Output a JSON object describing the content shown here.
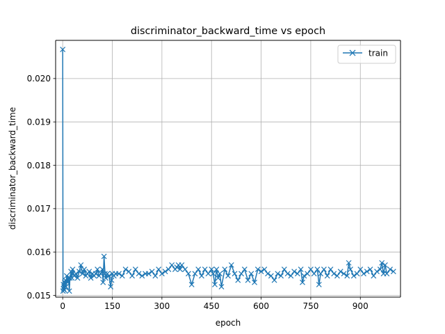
{
  "chart_data": {
    "type": "line",
    "title": "discriminator_backward_time vs epoch",
    "xlabel": "epoch",
    "ylabel": "discriminator_backward_time",
    "xlim": [
      -21.4,
      1021.4
    ],
    "ylim": [
      0.01496,
      0.02088
    ],
    "xticks": [
      0,
      150,
      300,
      450,
      600,
      750,
      900
    ],
    "yticks": [
      0.015,
      0.016,
      0.017,
      0.018,
      0.019,
      0.02
    ],
    "ytick_labels": [
      "0.015",
      "0.016",
      "0.017",
      "0.018",
      "0.019",
      "0.020"
    ],
    "grid": true,
    "legend": "upper right",
    "marker": "x",
    "series": [
      {
        "name": "train",
        "color": "#1f77b4",
        "x": [
          0,
          1,
          2,
          3,
          4,
          5,
          6,
          8,
          10,
          12,
          15,
          18,
          20,
          22,
          25,
          28,
          30,
          35,
          40,
          45,
          50,
          55,
          60,
          65,
          70,
          75,
          80,
          85,
          90,
          95,
          100,
          105,
          110,
          115,
          120,
          122,
          125,
          128,
          130,
          135,
          140,
          145,
          148,
          150,
          155,
          160,
          170,
          180,
          190,
          200,
          210,
          220,
          230,
          240,
          250,
          260,
          270,
          280,
          290,
          300,
          310,
          320,
          330,
          340,
          345,
          350,
          355,
          360,
          370,
          380,
          390,
          400,
          410,
          420,
          430,
          440,
          450,
          455,
          460,
          465,
          470,
          475,
          480,
          490,
          500,
          510,
          520,
          530,
          540,
          550,
          560,
          570,
          580,
          590,
          600,
          610,
          620,
          630,
          640,
          650,
          660,
          670,
          680,
          690,
          700,
          710,
          720,
          725,
          730,
          740,
          750,
          760,
          770,
          775,
          780,
          790,
          800,
          810,
          820,
          830,
          840,
          850,
          860,
          865,
          870,
          880,
          890,
          900,
          910,
          920,
          930,
          940,
          950,
          960,
          965,
          970,
          975,
          980,
          990,
          1000
        ],
        "y": [
          0.02067,
          0.0151,
          0.01525,
          0.01515,
          0.0152,
          0.01512,
          0.0153,
          0.01535,
          0.0152,
          0.01545,
          0.0153,
          0.0154,
          0.0151,
          0.0154,
          0.01555,
          0.0154,
          0.0156,
          0.01545,
          0.0155,
          0.0154,
          0.01555,
          0.0157,
          0.0155,
          0.0156,
          0.01545,
          0.0155,
          0.01555,
          0.0154,
          0.0155,
          0.01545,
          0.0155,
          0.0156,
          0.01545,
          0.0155,
          0.0156,
          0.0153,
          0.0159,
          0.0155,
          0.0154,
          0.0155,
          0.01545,
          0.0152,
          0.01535,
          0.0155,
          0.01545,
          0.0155,
          0.0155,
          0.01545,
          0.0156,
          0.01555,
          0.01545,
          0.0156,
          0.0155,
          0.01545,
          0.0155,
          0.0155,
          0.01555,
          0.01545,
          0.0156,
          0.0155,
          0.01555,
          0.0156,
          0.0157,
          0.0156,
          0.01565,
          0.0157,
          0.0156,
          0.0157,
          0.0156,
          0.0155,
          0.01525,
          0.0155,
          0.0156,
          0.01545,
          0.0156,
          0.0155,
          0.0156,
          0.0155,
          0.01525,
          0.0156,
          0.0154,
          0.0155,
          0.0152,
          0.0156,
          0.01545,
          0.0157,
          0.0155,
          0.01535,
          0.0155,
          0.0156,
          0.01535,
          0.0155,
          0.0153,
          0.0156,
          0.01555,
          0.0156,
          0.0155,
          0.01545,
          0.01535,
          0.0155,
          0.01545,
          0.0156,
          0.0155,
          0.01545,
          0.01555,
          0.0155,
          0.0156,
          0.0153,
          0.01545,
          0.0155,
          0.0156,
          0.0155,
          0.0156,
          0.01525,
          0.0155,
          0.0156,
          0.01545,
          0.0156,
          0.0155,
          0.01545,
          0.01555,
          0.0155,
          0.01545,
          0.01575,
          0.0156,
          0.01545,
          0.0155,
          0.0156,
          0.0155,
          0.01555,
          0.0156,
          0.01545,
          0.01555,
          0.0156,
          0.01575,
          0.0155,
          0.0157,
          0.0155,
          0.0156,
          0.01555
        ]
      }
    ]
  }
}
